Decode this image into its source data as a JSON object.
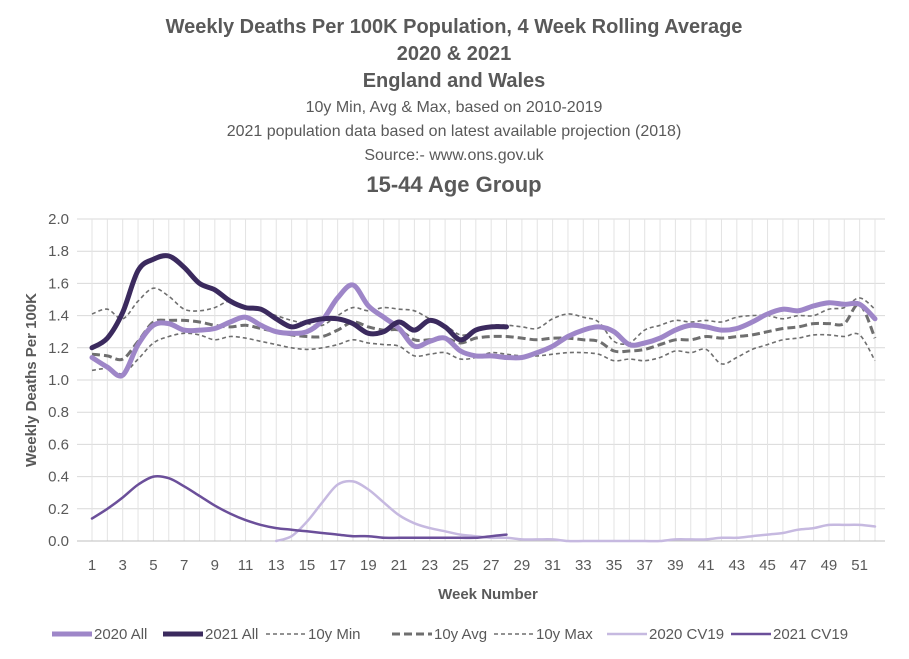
{
  "chart_data": {
    "type": "line",
    "title_lines": [
      "Weekly Deaths Per 100K Population, 4 Week Rolling Average",
      "2020 & 2021",
      "England and Wales",
      "10y Min, Avg & Max, based on 2010-2019",
      "2021 population data based on latest available projection (2018)",
      "Source:- www.ons.gov.uk",
      "15-44 Age Group"
    ],
    "xlabel": "Week Number",
    "ylabel": "Weekly Deaths Per 100K",
    "xlim": [
      1,
      52
    ],
    "ylim": [
      0,
      2.0
    ],
    "x_ticks": [
      1,
      3,
      5,
      7,
      9,
      11,
      13,
      15,
      17,
      19,
      21,
      23,
      25,
      27,
      29,
      31,
      33,
      35,
      37,
      39,
      41,
      43,
      45,
      47,
      49,
      51
    ],
    "y_ticks": [
      "0.0",
      "0.2",
      "0.4",
      "0.6",
      "0.8",
      "1.0",
      "1.2",
      "1.4",
      "1.6",
      "1.8",
      "2.0"
    ],
    "grid": true,
    "legend_position": "bottom",
    "series": [
      {
        "name": "2020 All",
        "color": "#9e86c8",
        "style": "solid-thick",
        "points": [
          [
            1,
            1.14
          ],
          [
            2,
            1.08
          ],
          [
            3,
            1.03
          ],
          [
            4,
            1.22
          ],
          [
            5,
            1.34
          ],
          [
            6,
            1.35
          ],
          [
            7,
            1.31
          ],
          [
            8,
            1.31
          ],
          [
            9,
            1.32
          ],
          [
            10,
            1.36
          ],
          [
            11,
            1.39
          ],
          [
            12,
            1.34
          ],
          [
            13,
            1.3
          ],
          [
            14,
            1.29
          ],
          [
            15,
            1.3
          ],
          [
            16,
            1.37
          ],
          [
            17,
            1.51
          ],
          [
            18,
            1.59
          ],
          [
            19,
            1.46
          ],
          [
            20,
            1.39
          ],
          [
            21,
            1.32
          ],
          [
            22,
            1.21
          ],
          [
            23,
            1.24
          ],
          [
            24,
            1.26
          ],
          [
            25,
            1.18
          ],
          [
            26,
            1.15
          ],
          [
            27,
            1.15
          ],
          [
            28,
            1.14
          ],
          [
            29,
            1.14
          ],
          [
            30,
            1.17
          ],
          [
            31,
            1.21
          ],
          [
            32,
            1.27
          ],
          [
            33,
            1.31
          ],
          [
            34,
            1.33
          ],
          [
            35,
            1.3
          ],
          [
            36,
            1.22
          ],
          [
            37,
            1.23
          ],
          [
            38,
            1.26
          ],
          [
            39,
            1.31
          ],
          [
            40,
            1.34
          ],
          [
            41,
            1.33
          ],
          [
            42,
            1.31
          ],
          [
            43,
            1.32
          ],
          [
            44,
            1.36
          ],
          [
            45,
            1.41
          ],
          [
            46,
            1.44
          ],
          [
            47,
            1.43
          ],
          [
            48,
            1.46
          ],
          [
            49,
            1.48
          ],
          [
            50,
            1.47
          ],
          [
            51,
            1.47
          ],
          [
            52,
            1.38
          ]
        ]
      },
      {
        "name": "2021 All",
        "color": "#3b2a5e",
        "style": "solid-thick",
        "points": [
          [
            1,
            1.2
          ],
          [
            2,
            1.26
          ],
          [
            3,
            1.42
          ],
          [
            4,
            1.68
          ],
          [
            5,
            1.75
          ],
          [
            6,
            1.77
          ],
          [
            7,
            1.7
          ],
          [
            8,
            1.6
          ],
          [
            9,
            1.56
          ],
          [
            10,
            1.49
          ],
          [
            11,
            1.45
          ],
          [
            12,
            1.44
          ],
          [
            13,
            1.38
          ],
          [
            14,
            1.33
          ],
          [
            15,
            1.36
          ],
          [
            16,
            1.38
          ],
          [
            17,
            1.38
          ],
          [
            18,
            1.35
          ],
          [
            19,
            1.29
          ],
          [
            20,
            1.3
          ],
          [
            21,
            1.36
          ],
          [
            22,
            1.31
          ],
          [
            23,
            1.37
          ],
          [
            24,
            1.33
          ],
          [
            25,
            1.25
          ],
          [
            26,
            1.31
          ],
          [
            27,
            1.33
          ],
          [
            28,
            1.33
          ]
        ]
      },
      {
        "name": "10y Min",
        "color": "#6f6f6f",
        "style": "dashed-thin",
        "points": [
          [
            1,
            1.06
          ],
          [
            2,
            1.07
          ],
          [
            3,
            1.04
          ],
          [
            4,
            1.13
          ],
          [
            5,
            1.23
          ],
          [
            6,
            1.27
          ],
          [
            7,
            1.29
          ],
          [
            8,
            1.28
          ],
          [
            9,
            1.25
          ],
          [
            10,
            1.27
          ],
          [
            11,
            1.26
          ],
          [
            12,
            1.24
          ],
          [
            13,
            1.22
          ],
          [
            14,
            1.2
          ],
          [
            15,
            1.19
          ],
          [
            16,
            1.2
          ],
          [
            17,
            1.22
          ],
          [
            18,
            1.25
          ],
          [
            19,
            1.23
          ],
          [
            20,
            1.22
          ],
          [
            21,
            1.21
          ],
          [
            22,
            1.15
          ],
          [
            23,
            1.16
          ],
          [
            24,
            1.17
          ],
          [
            25,
            1.13
          ],
          [
            26,
            1.14
          ],
          [
            27,
            1.17
          ],
          [
            28,
            1.16
          ],
          [
            29,
            1.15
          ],
          [
            30,
            1.15
          ],
          [
            31,
            1.16
          ],
          [
            32,
            1.17
          ],
          [
            33,
            1.17
          ],
          [
            34,
            1.16
          ],
          [
            35,
            1.12
          ],
          [
            36,
            1.13
          ],
          [
            37,
            1.12
          ],
          [
            38,
            1.14
          ],
          [
            39,
            1.18
          ],
          [
            40,
            1.17
          ],
          [
            41,
            1.19
          ],
          [
            42,
            1.1
          ],
          [
            43,
            1.14
          ],
          [
            44,
            1.19
          ],
          [
            45,
            1.22
          ],
          [
            46,
            1.25
          ],
          [
            47,
            1.26
          ],
          [
            48,
            1.28
          ],
          [
            49,
            1.28
          ],
          [
            50,
            1.27
          ],
          [
            51,
            1.28
          ],
          [
            52,
            1.12
          ]
        ]
      },
      {
        "name": "10y Avg",
        "color": "#6f6f6f",
        "style": "dashed-thick",
        "points": [
          [
            1,
            1.16
          ],
          [
            2,
            1.15
          ],
          [
            3,
            1.13
          ],
          [
            4,
            1.24
          ],
          [
            5,
            1.36
          ],
          [
            6,
            1.37
          ],
          [
            7,
            1.37
          ],
          [
            8,
            1.36
          ],
          [
            9,
            1.34
          ],
          [
            10,
            1.33
          ],
          [
            11,
            1.34
          ],
          [
            12,
            1.32
          ],
          [
            13,
            1.3
          ],
          [
            14,
            1.28
          ],
          [
            15,
            1.27
          ],
          [
            16,
            1.27
          ],
          [
            17,
            1.31
          ],
          [
            18,
            1.36
          ],
          [
            19,
            1.33
          ],
          [
            20,
            1.31
          ],
          [
            21,
            1.31
          ],
          [
            22,
            1.25
          ],
          [
            23,
            1.25
          ],
          [
            24,
            1.26
          ],
          [
            25,
            1.23
          ],
          [
            26,
            1.26
          ],
          [
            27,
            1.27
          ],
          [
            28,
            1.27
          ],
          [
            29,
            1.26
          ],
          [
            30,
            1.25
          ],
          [
            31,
            1.26
          ],
          [
            32,
            1.26
          ],
          [
            33,
            1.25
          ],
          [
            34,
            1.24
          ],
          [
            35,
            1.18
          ],
          [
            36,
            1.18
          ],
          [
            37,
            1.19
          ],
          [
            38,
            1.22
          ],
          [
            39,
            1.25
          ],
          [
            40,
            1.25
          ],
          [
            41,
            1.27
          ],
          [
            42,
            1.26
          ],
          [
            43,
            1.27
          ],
          [
            44,
            1.28
          ],
          [
            45,
            1.3
          ],
          [
            46,
            1.32
          ],
          [
            47,
            1.33
          ],
          [
            48,
            1.35
          ],
          [
            49,
            1.35
          ],
          [
            50,
            1.35
          ],
          [
            51,
            1.47
          ],
          [
            52,
            1.26
          ]
        ]
      },
      {
        "name": "10y Max",
        "color": "#6f6f6f",
        "style": "dashed-thin",
        "points": [
          [
            1,
            1.41
          ],
          [
            2,
            1.44
          ],
          [
            3,
            1.38
          ],
          [
            4,
            1.49
          ],
          [
            5,
            1.57
          ],
          [
            6,
            1.52
          ],
          [
            7,
            1.44
          ],
          [
            8,
            1.43
          ],
          [
            9,
            1.45
          ],
          [
            10,
            1.49
          ],
          [
            11,
            1.45
          ],
          [
            12,
            1.43
          ],
          [
            13,
            1.4
          ],
          [
            14,
            1.37
          ],
          [
            15,
            1.35
          ],
          [
            16,
            1.34
          ],
          [
            17,
            1.4
          ],
          [
            18,
            1.45
          ],
          [
            19,
            1.43
          ],
          [
            20,
            1.45
          ],
          [
            21,
            1.44
          ],
          [
            22,
            1.43
          ],
          [
            23,
            1.38
          ],
          [
            24,
            1.34
          ],
          [
            25,
            1.28
          ],
          [
            26,
            1.3
          ],
          [
            27,
            1.34
          ],
          [
            28,
            1.34
          ],
          [
            29,
            1.33
          ],
          [
            30,
            1.32
          ],
          [
            31,
            1.38
          ],
          [
            32,
            1.41
          ],
          [
            33,
            1.39
          ],
          [
            34,
            1.36
          ],
          [
            35,
            1.24
          ],
          [
            36,
            1.23
          ],
          [
            37,
            1.31
          ],
          [
            38,
            1.34
          ],
          [
            39,
            1.37
          ],
          [
            40,
            1.36
          ],
          [
            41,
            1.37
          ],
          [
            42,
            1.36
          ],
          [
            43,
            1.39
          ],
          [
            44,
            1.4
          ],
          [
            45,
            1.4
          ],
          [
            46,
            1.38
          ],
          [
            47,
            1.4
          ],
          [
            48,
            1.4
          ],
          [
            49,
            1.44
          ],
          [
            50,
            1.45
          ],
          [
            51,
            1.51
          ],
          [
            52,
            1.44
          ]
        ]
      },
      {
        "name": "2020 CV19",
        "color": "#c6b9e0",
        "style": "solid",
        "points": [
          [
            13,
            0.0
          ],
          [
            14,
            0.03
          ],
          [
            15,
            0.12
          ],
          [
            16,
            0.24
          ],
          [
            17,
            0.35
          ],
          [
            18,
            0.37
          ],
          [
            19,
            0.32
          ],
          [
            20,
            0.24
          ],
          [
            21,
            0.16
          ],
          [
            22,
            0.11
          ],
          [
            23,
            0.08
          ],
          [
            24,
            0.06
          ],
          [
            25,
            0.04
          ],
          [
            26,
            0.03
          ],
          [
            27,
            0.02
          ],
          [
            28,
            0.02
          ],
          [
            29,
            0.01
          ],
          [
            30,
            0.01
          ],
          [
            31,
            0.01
          ],
          [
            32,
            0.0
          ],
          [
            33,
            0.0
          ],
          [
            34,
            0.0
          ],
          [
            35,
            0.0
          ],
          [
            36,
            0.0
          ],
          [
            37,
            0.0
          ],
          [
            38,
            0.0
          ],
          [
            39,
            0.01
          ],
          [
            40,
            0.01
          ],
          [
            41,
            0.01
          ],
          [
            42,
            0.02
          ],
          [
            43,
            0.02
          ],
          [
            44,
            0.03
          ],
          [
            45,
            0.04
          ],
          [
            46,
            0.05
          ],
          [
            47,
            0.07
          ],
          [
            48,
            0.08
          ],
          [
            49,
            0.1
          ],
          [
            50,
            0.1
          ],
          [
            51,
            0.1
          ],
          [
            52,
            0.09
          ]
        ]
      },
      {
        "name": "2021 CV19",
        "color": "#6b4f9a",
        "style": "solid",
        "points": [
          [
            1,
            0.14
          ],
          [
            2,
            0.2
          ],
          [
            3,
            0.27
          ],
          [
            4,
            0.35
          ],
          [
            5,
            0.4
          ],
          [
            6,
            0.39
          ],
          [
            7,
            0.34
          ],
          [
            8,
            0.28
          ],
          [
            9,
            0.22
          ],
          [
            10,
            0.17
          ],
          [
            11,
            0.13
          ],
          [
            12,
            0.1
          ],
          [
            13,
            0.08
          ],
          [
            14,
            0.07
          ],
          [
            15,
            0.06
          ],
          [
            16,
            0.05
          ],
          [
            17,
            0.04
          ],
          [
            18,
            0.03
          ],
          [
            19,
            0.03
          ],
          [
            20,
            0.02
          ],
          [
            21,
            0.02
          ],
          [
            22,
            0.02
          ],
          [
            23,
            0.02
          ],
          [
            24,
            0.02
          ],
          [
            25,
            0.02
          ],
          [
            26,
            0.02
          ],
          [
            27,
            0.03
          ],
          [
            28,
            0.04
          ]
        ]
      }
    ]
  }
}
